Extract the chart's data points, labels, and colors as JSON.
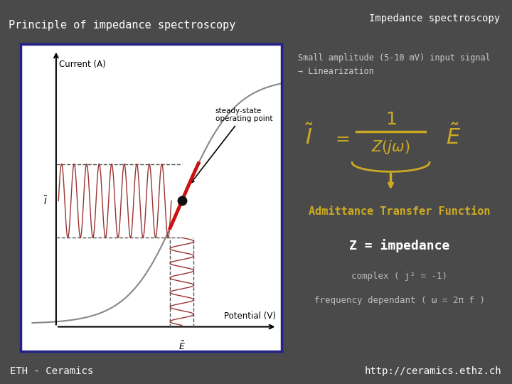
{
  "bg_color": "#4a4a4a",
  "title_bar_text": "Impedance spectroscopy",
  "title_bar_bg": "#111111",
  "slide_title": "Principle of impedance spectroscopy",
  "slide_title_color": "#ffffff",
  "slide_title_fontsize": 11,
  "plot_bg": "#ffffff",
  "plot_border_color": "#222288",
  "xlabel": "Potential (V)",
  "ylabel": "Current (A)",
  "curve_color": "#888888",
  "wave_color": "#993333",
  "highlight_color": "#cc1111",
  "dashed_color": "#555555",
  "dot_color": "#111111",
  "annotation_text": "steady-state\noperating point",
  "right_title": "Small amplitude (5-10 mV) input signal\n→ Linearization",
  "right_title_color": "#cccccc",
  "formula_color": "#ccaa22",
  "admittance_text": "Admittance Transfer Function",
  "admittance_color": "#ccaa22",
  "admittance_fontsize": 11,
  "impedance_text": "Z = impedance",
  "impedance_color": "#ffffff",
  "impedance_fontsize": 13,
  "complex_text": "complex ( j² = -1)",
  "complex_color": "#bbbbbb",
  "complex_fontsize": 9,
  "freq_text": "frequency dependant ( ω = 2π f )",
  "freq_color": "#bbbbbb",
  "freq_fontsize": 9,
  "footer_bg": "#222222",
  "footer_left": "ETH - Ceramics",
  "footer_right": "http://ceramics.ethz.ch",
  "footer_color": "#ffffff",
  "footer_fontsize": 10
}
